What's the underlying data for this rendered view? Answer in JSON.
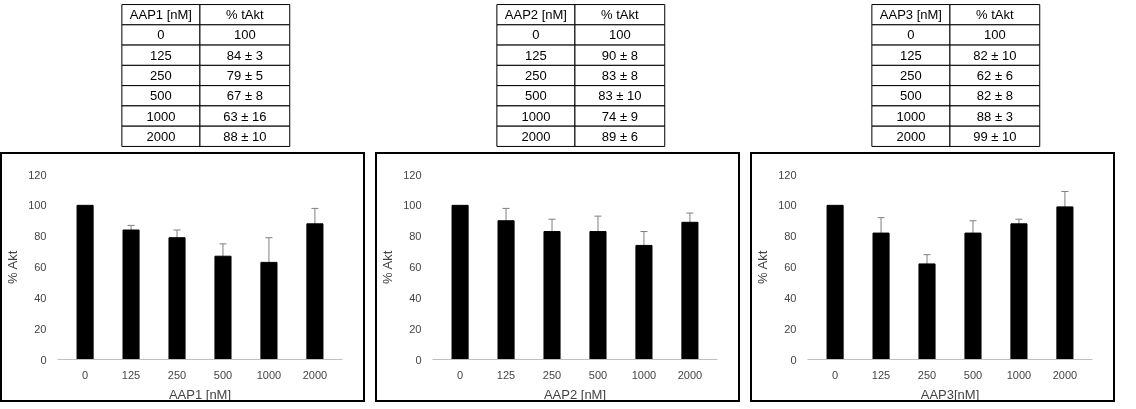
{
  "chart_data": [
    {
      "type": "bar",
      "xlabel": "AAP1 [nM]",
      "ylabel": "% Akt",
      "categories": [
        "0",
        "125",
        "250",
        "500",
        "1000",
        "2000"
      ],
      "values": [
        100,
        84,
        79,
        67,
        63,
        88
      ],
      "errors": [
        null,
        3,
        5,
        8,
        16,
        10
      ],
      "annotations": [
        "AAP1 [nM]",
        "% tAkt",
        "100",
        "84 ± 3",
        "79 ± 5",
        "67 ± 8",
        "63 ± 16",
        "88 ± 10"
      ],
      "color": "#000000",
      "ylim": [
        0,
        120
      ],
      "yticks": [
        0,
        20,
        40,
        60,
        80,
        100,
        120
      ]
    },
    {
      "type": "bar",
      "xlabel": "AAP2 [nM]",
      "ylabel": "% Akt",
      "categories": [
        "0",
        "125",
        "250",
        "500",
        "1000",
        "2000"
      ],
      "values": [
        100,
        90,
        83,
        83,
        74,
        89
      ],
      "errors": [
        null,
        8,
        8,
        10,
        9,
        6
      ],
      "annotations": [
        "AAP2 [nM]",
        "% tAkt",
        "100",
        "90 ± 8",
        "83 ± 8",
        "83 ± 10",
        "74 ± 9",
        "89 ± 6"
      ],
      "color": "#000000",
      "ylim": [
        0,
        120
      ],
      "yticks": [
        0,
        20,
        40,
        60,
        80,
        100,
        120
      ]
    },
    {
      "type": "bar",
      "xlabel": "AAP3[nM]",
      "ylabel": "% Akt",
      "categories": [
        "0",
        "125",
        "250",
        "500",
        "1000",
        "2000"
      ],
      "values": [
        100,
        82,
        62,
        82,
        88,
        99
      ],
      "errors": [
        null,
        10,
        6,
        8,
        3,
        10
      ],
      "annotations": [
        "AAP3 [nM]",
        "% tAkt",
        "100",
        "82 ± 10",
        "62 ± 6",
        "82 ± 8",
        "88 ± 3",
        "99 ± 10"
      ],
      "color": "#000000",
      "ylim": [
        0,
        120
      ],
      "yticks": [
        0,
        20,
        40,
        60,
        80,
        100,
        120
      ]
    }
  ]
}
